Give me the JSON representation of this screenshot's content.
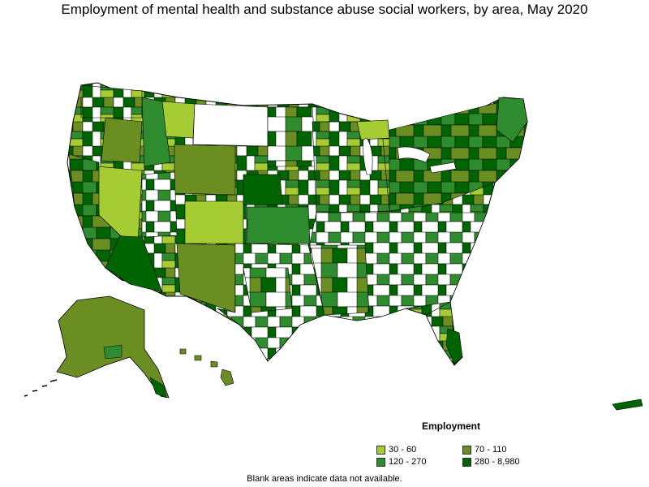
{
  "title": "Employment of mental health and substance abuse social workers, by area, May 2020",
  "legend": {
    "title": "Employment",
    "items": [
      {
        "label": "30 - 60",
        "color": "#a6cc33"
      },
      {
        "label": "70 - 110",
        "color": "#6b8e23"
      },
      {
        "label": "120 - 270",
        "color": "#2e8b2e"
      },
      {
        "label": "280 - 8,980",
        "color": "#006400"
      }
    ]
  },
  "note": "Blank areas indicate data not available.",
  "colors": {
    "border": "#000000",
    "blank": "#ffffff"
  }
}
